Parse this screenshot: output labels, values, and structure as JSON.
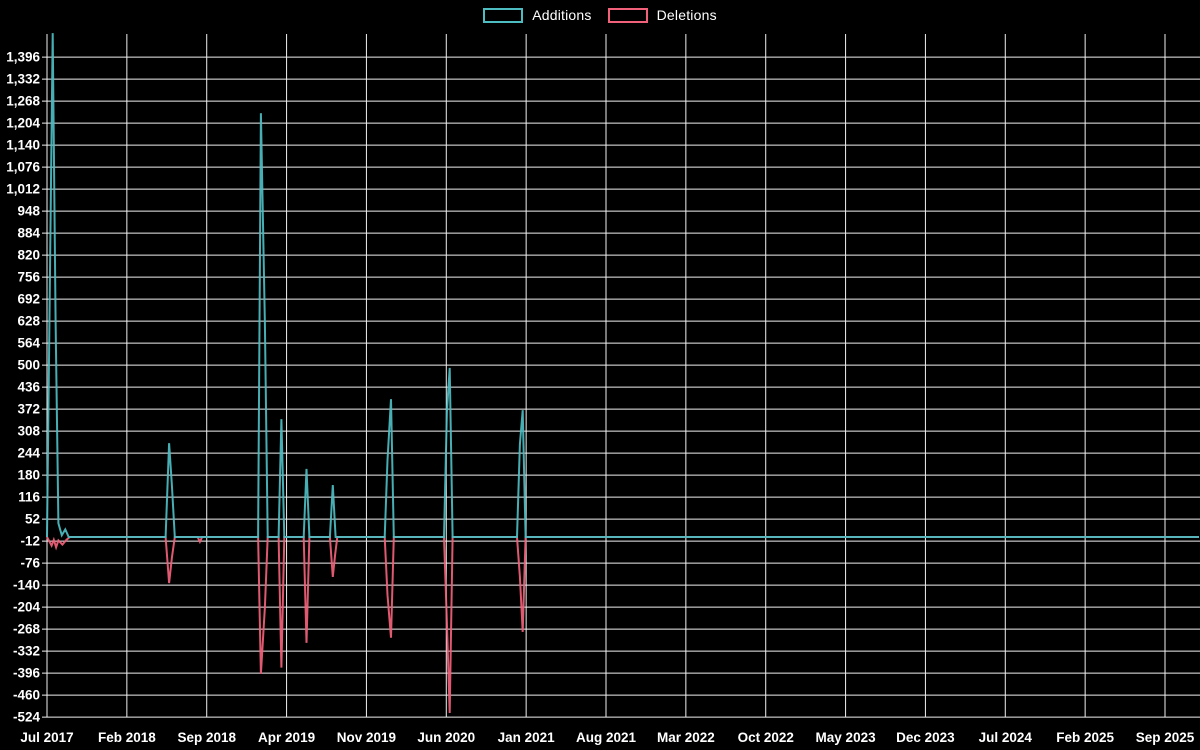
{
  "chart_data": {
    "type": "line",
    "title": "",
    "legend": {
      "additions": "Additions",
      "deletions": "Deletions"
    },
    "legend_position": "top-center",
    "grid": true,
    "colors": {
      "background": "#000000",
      "grid": "#f0f0f0",
      "text": "#ffffff",
      "additions": "#4dbdc2",
      "deletions": "#f2617a"
    },
    "y_axis": {
      "tick_step": 64,
      "ticks": [
        1396,
        1332,
        1268,
        1204,
        1140,
        1076,
        1012,
        948,
        884,
        820,
        756,
        692,
        628,
        564,
        500,
        436,
        372,
        308,
        244,
        180,
        116,
        52,
        -12,
        -76,
        -140,
        -204,
        -268,
        -332,
        -396,
        -460,
        -524
      ],
      "range_visible": [
        -541,
        1466
      ]
    },
    "x_axis": {
      "labels": [
        "Jul 2017",
        "Feb 2018",
        "Sep 2018",
        "Apr 2019",
        "Nov 2019",
        "Jun 2020",
        "Jan 2021",
        "Aug 2021",
        "Mar 2022",
        "Oct 2022",
        "May 2023",
        "Dec 2023",
        "Jul 2024",
        "Feb 2025",
        "Sep 2025"
      ],
      "months_per_gridline": 7,
      "unit": "month index from Jul 2017"
    },
    "series": [
      {
        "name": "Additions",
        "color_key": "additions",
        "points": [
          [
            0,
            0
          ],
          [
            0.5,
            1466
          ],
          [
            0.75,
            628
          ],
          [
            1.0,
            40
          ],
          [
            1.3,
            5
          ],
          [
            1.6,
            22
          ],
          [
            1.9,
            0
          ],
          [
            10.4,
            0
          ],
          [
            10.7,
            273
          ],
          [
            10.95,
            150
          ],
          [
            11.2,
            0
          ],
          [
            18.5,
            0
          ],
          [
            18.75,
            1233
          ],
          [
            19.1,
            620
          ],
          [
            19.35,
            0
          ],
          [
            20.3,
            0
          ],
          [
            20.55,
            343
          ],
          [
            20.8,
            0
          ],
          [
            22.5,
            0
          ],
          [
            22.75,
            198
          ],
          [
            23.0,
            0
          ],
          [
            24.8,
            0
          ],
          [
            25.05,
            151
          ],
          [
            25.3,
            0
          ],
          [
            29.6,
            0
          ],
          [
            29.85,
            224
          ],
          [
            30.15,
            401
          ],
          [
            30.4,
            0
          ],
          [
            34.8,
            0
          ],
          [
            35.05,
            364
          ],
          [
            35.3,
            492
          ],
          [
            35.55,
            0
          ],
          [
            41.2,
            0
          ],
          [
            41.45,
            270
          ],
          [
            41.7,
            369
          ],
          [
            41.95,
            0
          ],
          [
            101,
            0
          ]
        ]
      },
      {
        "name": "Deletions",
        "color_key": "deletions",
        "points": [
          [
            0,
            0
          ],
          [
            0.4,
            -25
          ],
          [
            0.6,
            -8
          ],
          [
            0.8,
            -30
          ],
          [
            1.0,
            -10
          ],
          [
            1.35,
            -22
          ],
          [
            1.7,
            -8
          ],
          [
            2.0,
            0
          ],
          [
            10.4,
            0
          ],
          [
            10.7,
            -134
          ],
          [
            10.95,
            -60
          ],
          [
            11.2,
            0
          ],
          [
            13.2,
            0
          ],
          [
            13.4,
            -14
          ],
          [
            13.6,
            0
          ],
          [
            18.5,
            0
          ],
          [
            18.75,
            -398
          ],
          [
            19.1,
            -204
          ],
          [
            19.35,
            0
          ],
          [
            20.3,
            0
          ],
          [
            20.55,
            -380
          ],
          [
            20.8,
            0
          ],
          [
            22.5,
            0
          ],
          [
            22.75,
            -308
          ],
          [
            23.0,
            0
          ],
          [
            24.8,
            0
          ],
          [
            25.05,
            -116
          ],
          [
            25.25,
            -52
          ],
          [
            25.45,
            0
          ],
          [
            29.6,
            0
          ],
          [
            29.85,
            -169
          ],
          [
            30.15,
            -293
          ],
          [
            30.4,
            0
          ],
          [
            34.8,
            0
          ],
          [
            35.05,
            -250
          ],
          [
            35.3,
            -512
          ],
          [
            35.55,
            0
          ],
          [
            41.2,
            0
          ],
          [
            41.45,
            -116
          ],
          [
            41.7,
            -276
          ],
          [
            41.95,
            0
          ],
          [
            101,
            0
          ]
        ]
      }
    ]
  }
}
